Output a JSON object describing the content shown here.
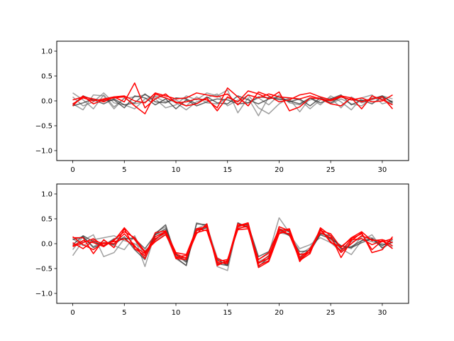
{
  "chart_data": [
    {
      "type": "line",
      "xlim": [
        -1.55,
        32.55
      ],
      "ylim": [
        -1.2,
        1.2
      ],
      "xticks": [
        0,
        5,
        10,
        15,
        20,
        25,
        30
      ],
      "yticks": [
        -1.0,
        -0.5,
        0.0,
        0.5,
        1.0
      ],
      "xtick_labels": [
        "0",
        "5",
        "10",
        "15",
        "20",
        "25",
        "30"
      ],
      "ytick_labels": [
        "−1.0",
        "−0.5",
        "0.0",
        "0.5",
        "1.0"
      ],
      "grid": false,
      "colors": {
        "gray": "#808080",
        "dark": "#333333",
        "red": "#ff0000"
      },
      "series": [
        {
          "color": "gray",
          "values": [
            0.16,
            0.02,
            -0.16,
            0.12,
            -0.12,
            0.05,
            0.08,
            0.12,
            0.04,
            -0.14,
            -0.08,
            0.1,
            0.02,
            0.16,
            0.1,
            0.22,
            -0.24,
            0.06,
            -0.3,
            0.08,
            0.02,
            0.04,
            -0.22,
            0.06,
            -0.08,
            0.1,
            -0.02,
            -0.18,
            0.06,
            0.12,
            -0.06,
            0.0
          ]
        },
        {
          "color": "gray",
          "values": [
            -0.06,
            -0.18,
            0.12,
            0.1,
            -0.16,
            0.06,
            -0.06,
            -0.02,
            0.08,
            -0.02,
            0.02,
            -0.1,
            0.08,
            -0.04,
            -0.06,
            0.06,
            -0.02,
            0.12,
            -0.14,
            -0.26,
            -0.06,
            0.06,
            0.02,
            -0.16,
            0.02,
            0.06,
            -0.14,
            0.08,
            -0.04,
            0.02,
            0.1,
            0.04
          ]
        },
        {
          "color": "gray",
          "values": [
            0.08,
            -0.1,
            -0.02,
            0.16,
            -0.04,
            -0.08,
            -0.16,
            0.04,
            0.1,
            0.06,
            -0.04,
            -0.18,
            -0.02,
            0.06,
            0.14,
            -0.1,
            0.02,
            -0.04,
            0.06,
            -0.08,
            0.12,
            -0.04,
            -0.08,
            0.02,
            0.08,
            -0.06,
            0.04,
            -0.06,
            -0.1,
            0.06,
            0.04,
            -0.06
          ]
        },
        {
          "color": "dark",
          "values": [
            -0.1,
            -0.04,
            0.04,
            0.0,
            0.02,
            -0.14,
            0.1,
            0.06,
            -0.08,
            0.04,
            -0.16,
            0.02,
            -0.1,
            -0.02,
            0.04,
            0.02,
            -0.06,
            -0.04,
            0.08,
            0.06,
            0.04,
            0.0,
            -0.06,
            0.06,
            -0.04,
            0.04,
            0.12,
            -0.08,
            0.02,
            -0.06,
            0.08,
            -0.02
          ]
        },
        {
          "color": "dark",
          "values": [
            -0.08,
            0.1,
            0.02,
            -0.06,
            0.04,
            -0.08,
            -0.04,
            0.14,
            -0.02,
            -0.04,
            0.06,
            0.04,
            -0.06,
            0.08,
            -0.04,
            -0.06,
            0.1,
            0.02,
            -0.06,
            0.04,
            0.08,
            -0.02,
            0.04,
            -0.1,
            0.06,
            -0.04,
            0.08,
            0.02,
            0.0,
            0.04,
            0.1,
            -0.04
          ]
        },
        {
          "color": "red",
          "values": [
            -0.1,
            0.1,
            -0.06,
            0.02,
            0.06,
            0.08,
            -0.1,
            -0.26,
            0.14,
            0.06,
            -0.02,
            -0.1,
            -0.06,
            0.06,
            -0.2,
            0.08,
            -0.02,
            0.2,
            0.14,
            0.04,
            0.18,
            -0.2,
            -0.12,
            0.06,
            0.04,
            -0.06,
            -0.1,
            0.06,
            -0.16,
            0.1,
            0.02,
            -0.08
          ]
        },
        {
          "color": "red",
          "values": [
            0.02,
            0.08,
            0.04,
            -0.02,
            0.08,
            -0.02,
            0.36,
            -0.14,
            0.04,
            0.14,
            -0.04,
            -0.02,
            0.04,
            0.02,
            -0.14,
            0.26,
            0.08,
            -0.1,
            0.18,
            0.1,
            -0.02,
            0.02,
            0.12,
            0.16,
            0.08,
            0.02,
            0.1,
            0.06,
            -0.02,
            0.04,
            0.08,
            -0.16
          ]
        },
        {
          "color": "red",
          "values": [
            -0.06,
            0.06,
            0.0,
            0.04,
            0.08,
            0.1,
            0.0,
            -0.04,
            0.16,
            0.1,
            0.04,
            0.06,
            0.16,
            0.12,
            0.08,
            0.14,
            -0.08,
            0.12,
            0.06,
            0.14,
            0.08,
            0.06,
            0.04,
            0.1,
            0.04,
            0.0,
            0.08,
            0.02,
            0.06,
            -0.02,
            0.0,
            0.12
          ]
        }
      ]
    },
    {
      "type": "line",
      "xlim": [
        -1.55,
        32.55
      ],
      "ylim": [
        -1.2,
        1.2
      ],
      "xticks": [
        0,
        5,
        10,
        15,
        20,
        25,
        30
      ],
      "yticks": [
        -1.0,
        -0.5,
        0.0,
        0.5,
        1.0
      ],
      "xtick_labels": [
        "0",
        "5",
        "10",
        "15",
        "20",
        "25",
        "30"
      ],
      "ytick_labels": [
        "−1.0",
        "−0.5",
        "0.0",
        "0.5",
        "1.0"
      ],
      "grid": false,
      "colors": {
        "gray": "#808080",
        "dark": "#333333",
        "red": "#ff0000"
      },
      "series": [
        {
          "color": "gray",
          "values": [
            -0.24,
            0.06,
            0.18,
            -0.26,
            -0.18,
            0.1,
            0.12,
            -0.46,
            0.22,
            0.34,
            -0.22,
            -0.38,
            0.3,
            0.4,
            -0.46,
            -0.54,
            0.4,
            0.36,
            -0.32,
            -0.2,
            0.52,
            0.22,
            -0.22,
            -0.08,
            0.28,
            0.08,
            -0.1,
            -0.22,
            0.06,
            0.18,
            -0.1,
            0.04
          ]
        },
        {
          "color": "gray",
          "values": [
            0.1,
            -0.04,
            0.08,
            0.12,
            0.16,
            0.06,
            0.0,
            -0.14,
            0.06,
            0.2,
            -0.3,
            -0.44,
            0.42,
            0.36,
            -0.28,
            -0.4,
            0.34,
            0.4,
            -0.36,
            -0.26,
            0.22,
            0.18,
            -0.1,
            -0.02,
            0.12,
            0.02,
            -0.16,
            0.04,
            0.1,
            0.04,
            -0.02,
            0.02
          ]
        },
        {
          "color": "gray",
          "values": [
            -0.12,
            0.14,
            -0.06,
            0.06,
            -0.04,
            -0.12,
            0.16,
            -0.28,
            0.18,
            0.24,
            -0.2,
            -0.34,
            0.28,
            0.32,
            -0.34,
            -0.42,
            0.32,
            0.34,
            -0.4,
            -0.3,
            0.34,
            0.26,
            -0.26,
            -0.12,
            0.26,
            0.1,
            -0.04,
            -0.1,
            0.14,
            0.12,
            0.0,
            -0.06
          ]
        },
        {
          "color": "dark",
          "values": [
            0.08,
            0.14,
            -0.08,
            0.02,
            -0.02,
            0.14,
            -0.12,
            -0.32,
            0.2,
            0.38,
            -0.28,
            -0.44,
            0.4,
            0.38,
            -0.4,
            -0.44,
            0.42,
            0.32,
            -0.46,
            -0.28,
            0.3,
            0.24,
            -0.3,
            -0.16,
            0.2,
            0.16,
            -0.1,
            -0.06,
            0.06,
            0.1,
            -0.08,
            0.04
          ]
        },
        {
          "color": "dark",
          "values": [
            -0.02,
            0.16,
            0.04,
            -0.04,
            0.1,
            0.1,
            0.1,
            -0.1,
            0.18,
            0.3,
            -0.22,
            -0.36,
            0.26,
            0.32,
            -0.32,
            -0.44,
            0.36,
            0.38,
            -0.26,
            -0.16,
            0.28,
            0.16,
            -0.16,
            -0.14,
            0.18,
            0.1,
            -0.04,
            -0.08,
            0.02,
            0.1,
            -0.04,
            0.08
          ]
        },
        {
          "color": "red",
          "values": [
            0.12,
            0.12,
            -0.2,
            0.08,
            -0.08,
            0.3,
            -0.1,
            -0.24,
            0.22,
            0.26,
            -0.18,
            -0.22,
            0.3,
            0.34,
            -0.42,
            -0.36,
            0.3,
            0.36,
            -0.48,
            -0.36,
            0.2,
            0.28,
            -0.34,
            -0.2,
            0.32,
            0.16,
            -0.28,
            0.06,
            0.22,
            -0.18,
            -0.12,
            0.14
          ]
        },
        {
          "color": "red",
          "values": [
            -0.06,
            0.02,
            0.1,
            -0.04,
            0.06,
            0.32,
            0.08,
            -0.18,
            0.1,
            0.22,
            -0.28,
            -0.28,
            0.2,
            0.4,
            -0.44,
            -0.34,
            0.4,
            0.32,
            -0.32,
            -0.18,
            0.3,
            0.18,
            -0.32,
            -0.16,
            0.3,
            0.02,
            -0.06,
            0.1,
            0.2,
            -0.12,
            0.06,
            -0.04
          ]
        },
        {
          "color": "red",
          "values": [
            0.02,
            -0.1,
            0.06,
            0.0,
            0.04,
            0.1,
            -0.06,
            -0.2,
            0.08,
            0.26,
            -0.3,
            -0.32,
            0.26,
            0.36,
            -0.38,
            -0.4,
            0.34,
            0.4,
            -0.44,
            -0.34,
            0.34,
            0.26,
            -0.36,
            -0.1,
            0.22,
            0.12,
            -0.18,
            0.0,
            0.16,
            0.08,
            0.04,
            0.1
          ]
        },
        {
          "color": "red",
          "values": [
            0.14,
            -0.02,
            -0.12,
            0.02,
            0.0,
            0.2,
            -0.04,
            -0.3,
            0.14,
            0.24,
            -0.26,
            -0.24,
            0.22,
            0.28,
            -0.3,
            -0.38,
            0.36,
            0.42,
            -0.4,
            -0.24,
            0.24,
            0.2,
            -0.22,
            -0.18,
            0.26,
            0.2,
            -0.08,
            0.12,
            0.24,
            0.06,
            0.08,
            0.02
          ]
        },
        {
          "color": "red",
          "values": [
            -0.04,
            0.06,
            0.02,
            -0.06,
            0.08,
            0.24,
            0.12,
            -0.16,
            0.04,
            0.18,
            -0.2,
            -0.3,
            0.3,
            0.26,
            -0.36,
            -0.32,
            0.28,
            0.3,
            -0.38,
            -0.3,
            0.26,
            0.3,
            -0.28,
            -0.12,
            0.28,
            0.04,
            -0.14,
            0.08,
            0.1,
            -0.02,
            0.06,
            -0.1
          ]
        }
      ]
    }
  ]
}
